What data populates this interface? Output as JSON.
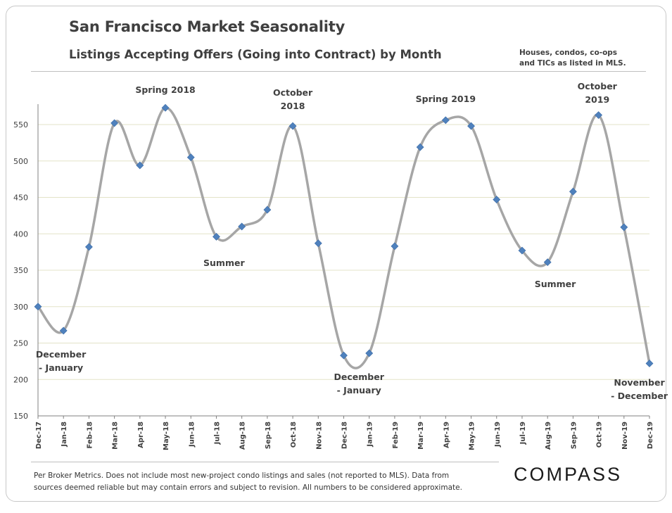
{
  "header": {
    "title": "San Francisco Market Seasonality",
    "subtitle": "Listings Accepting Offers (Going into Contract) by Month",
    "note_line1": "Houses, condos, co-ops",
    "note_line2": "and TICs as listed in MLS."
  },
  "footer": {
    "line1": "Per Broker Metrics. Does not include most new-project condo listings and sales (not reported to MLS). Data from",
    "line2": "sources deemed reliable but may contain errors and subject to revision.  All numbers to be considered approximate.",
    "logo": "COMPASS"
  },
  "colors": {
    "line": "#a6a6a6",
    "marker": "#4f81bd",
    "grid": "#e3e3c8",
    "axis": "#808080"
  },
  "chart_data": {
    "type": "line",
    "title": "Listings Accepting Offers (Going into Contract) by Month",
    "xlabel": "",
    "ylabel": "",
    "ylim": [
      150,
      580
    ],
    "yticks": [
      150,
      200,
      250,
      300,
      350,
      400,
      450,
      500,
      550
    ],
    "categories": [
      "Dec-17",
      "Jan-18",
      "Feb-18",
      "Mar-18",
      "Apr-18",
      "May-18",
      "Jun-18",
      "Jul-18",
      "Aug-18",
      "Sep-18",
      "Oct-18",
      "Nov-18",
      "Dec-18",
      "Jan-19",
      "Feb-19",
      "Mar-19",
      "Apr-19",
      "May-19",
      "Jun-19",
      "Jul-19",
      "Aug-19",
      "Sep-19",
      "Oct-19",
      "Nov-19",
      "Dec-19"
    ],
    "series": [
      {
        "name": "Listings Accepting Offers",
        "values": [
          300,
          267,
          382,
          552,
          494,
          573,
          505,
          396,
          410,
          433,
          548,
          387,
          233,
          236,
          383,
          519,
          556,
          548,
          447,
          377,
          361,
          458,
          563,
          409,
          222
        ]
      }
    ],
    "smooth": true,
    "annotations": [
      {
        "lines": [
          "Spring 2018"
        ],
        "index": 5
      },
      {
        "lines": [
          "October",
          "2018"
        ],
        "index": 10
      },
      {
        "lines": [
          "Summer"
        ],
        "index": 7.3
      },
      {
        "lines": [
          "December",
          "- January"
        ],
        "index": 0.9
      },
      {
        "lines": [
          "December",
          "- January"
        ],
        "index": 12.6
      },
      {
        "lines": [
          "Spring 2019"
        ],
        "index": 16
      },
      {
        "lines": [
          "October",
          "2019"
        ],
        "index": 21.95
      },
      {
        "lines": [
          "Summer"
        ],
        "index": 20.3
      },
      {
        "lines": [
          "November",
          "- December"
        ],
        "index": 23.6
      }
    ]
  }
}
